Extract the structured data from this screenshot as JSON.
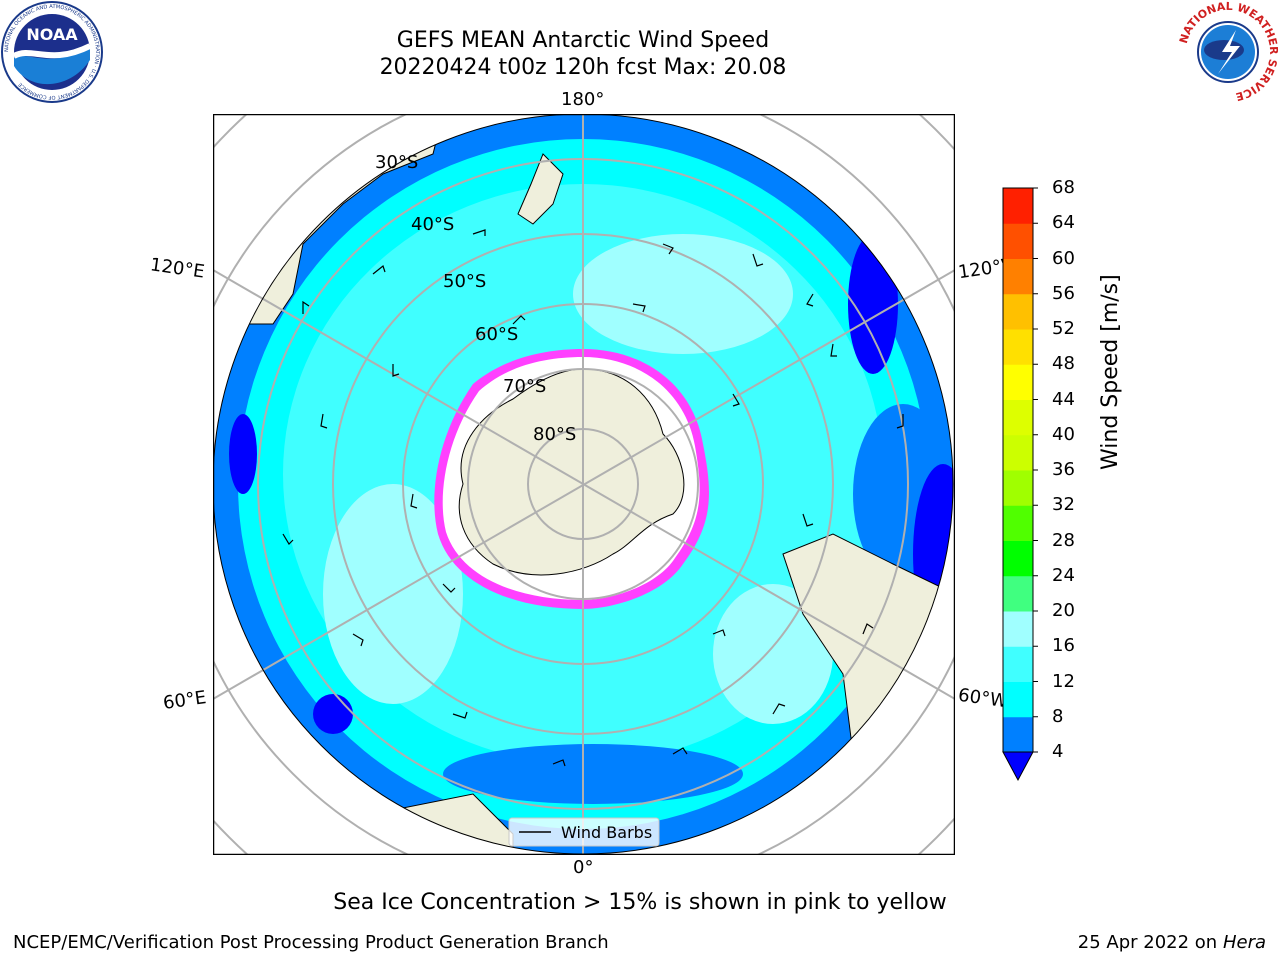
{
  "title": {
    "line1": "GEFS MEAN Antarctic Wind Speed",
    "line2": "20220424 t00z 120h fcst   Max: 20.08"
  },
  "map": {
    "projection": "south-polar-stereographic",
    "longitude_labels": {
      "top": "180°",
      "upper_left": "120°E",
      "upper_right": "120°W",
      "lower_left": "60°E",
      "lower_right": "60°W",
      "bottom": "0°"
    },
    "latitude_labels": [
      "30°S",
      "40°S",
      "50°S",
      "60°S",
      "70°S",
      "80°S"
    ],
    "legend_label": "Wind Barbs",
    "colors": {
      "ocean_low": "#0000ff",
      "ocean_4_8": "#0080ff",
      "ocean_8_12": "#00ffff",
      "ocean_12_16": "#40ffff",
      "ocean_16_20": "#a0ffff",
      "land": "#efefdc",
      "ice_edge": "#ff40ff",
      "ice_fill": "#ffffff"
    }
  },
  "colorbar": {
    "label": "Wind Speed [m/s]",
    "ticks": [
      "4",
      "8",
      "12",
      "16",
      "20",
      "24",
      "28",
      "32",
      "36",
      "40",
      "44",
      "48",
      "52",
      "56",
      "60",
      "64",
      "68"
    ],
    "colors": [
      "#0080ff",
      "#00ffff",
      "#40ffff",
      "#a0ffff",
      "#40ff80",
      "#00ff00",
      "#50ff00",
      "#a0ff00",
      "#ccff00",
      "#ddff00",
      "#ffff00",
      "#ffe000",
      "#ffc000",
      "#ff8000",
      "#ff5000",
      "#ff2000"
    ],
    "extend_color": "#0000ff"
  },
  "caption": "Sea Ice Concentration > 15% is shown in pink to yellow",
  "footer": {
    "left": "NCEP/EMC/Verification Post Processing Product Generation Branch",
    "right_prefix": "25 Apr 2022 on ",
    "right_machine": "Hera"
  },
  "logos": {
    "left": "NOAA",
    "left_ring": "NATIONAL OCEANIC AND ATMOSPHERIC ADMINISTRATION · U.S. DEPARTMENT OF COMMERCE",
    "right_ring": "NATIONAL WEATHER SERVICE"
  }
}
